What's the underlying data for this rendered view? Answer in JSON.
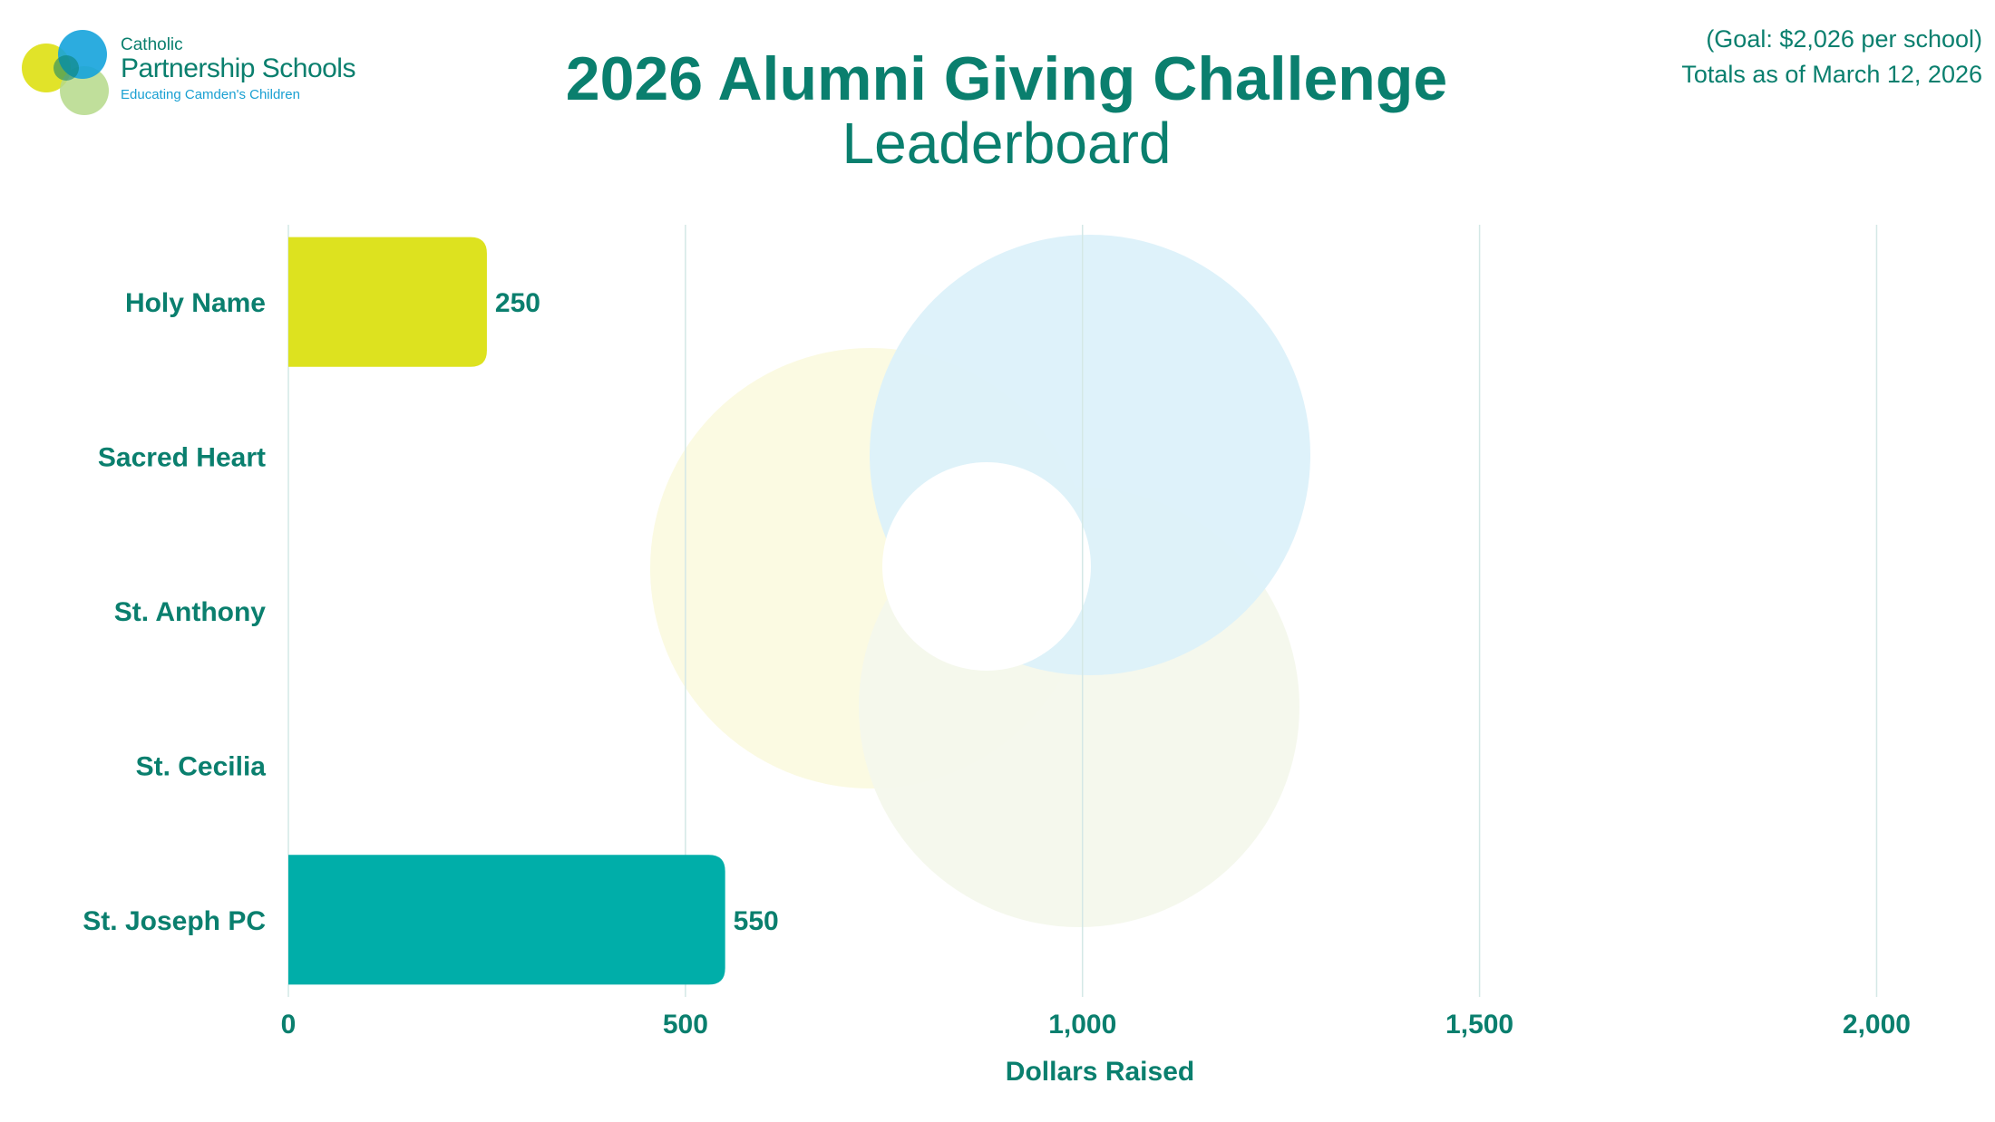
{
  "header": {
    "logo": {
      "line1": "Catholic",
      "line2": "Partnership Schools",
      "line3": "Educating Camden's Children"
    },
    "title": "2026 Alumni Giving Challenge",
    "subtitle": "Leaderboard",
    "goal_note": "(Goal: $2,026 per school)",
    "date_note": "Totals as of March 12, 2026"
  },
  "chart_data": {
    "type": "bar",
    "orientation": "horizontal",
    "categories": [
      "Holy Name",
      "Sacred Heart",
      "St. Anthony",
      "St. Cecilia",
      "St. Joseph PC"
    ],
    "values": [
      250,
      0,
      0,
      0,
      550
    ],
    "data_labels": [
      "250",
      "",
      "",
      "",
      "550"
    ],
    "bar_colors": [
      "#dde21f",
      "#dde21f",
      "#dde21f",
      "#dde21f",
      "#00aea9"
    ],
    "xlabel": "Dollars Raised",
    "xlim": [
      0,
      2060
    ],
    "xticks": [
      0,
      500,
      1000,
      1500,
      2000
    ],
    "xtick_labels": [
      "0",
      "500",
      "1,000",
      "1,500",
      "2,000"
    ],
    "grid": "vertical",
    "legend": "none"
  },
  "colors": {
    "text": "#0a7f6e",
    "grid": "#d4e8e6",
    "venn_blue": "#dcf1fa",
    "venn_yellow": "#fbfae2",
    "venn_green": "#f4f8ec"
  }
}
